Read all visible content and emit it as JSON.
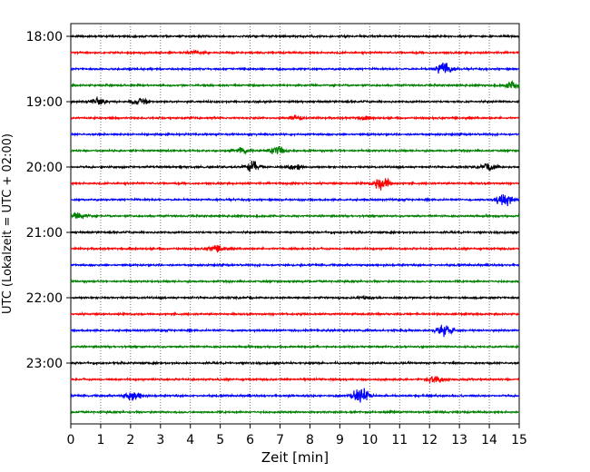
{
  "chart_data": {
    "type": "line",
    "subtype": "helicorder (seismogram drum plot)",
    "xlabel": "Zeit  [min]",
    "ylabel": "UTC (Lokalzeit = UTC + 02:00)",
    "xlim": [
      0,
      15
    ],
    "x_ticks": [
      "0",
      "1",
      "2",
      "3",
      "4",
      "5",
      "6",
      "7",
      "8",
      "9",
      "10",
      "11",
      "12",
      "13",
      "14",
      "15"
    ],
    "x_gridlines": "dotted vertical at each minute",
    "y_tick_labels": [
      "18:00",
      "19:00",
      "20:00",
      "21:00",
      "22:00",
      "23:00"
    ],
    "line_interval_minutes": 15,
    "line_colors": [
      "#000000",
      "#ff0000",
      "#0000ff",
      "#008000"
    ],
    "traces": [
      {
        "start": "18:00",
        "color": "#000000",
        "events": []
      },
      {
        "start": "18:15",
        "color": "#ff0000",
        "events": [
          {
            "t": 4.1,
            "amp": 2
          }
        ]
      },
      {
        "start": "18:30",
        "color": "#0000ff",
        "events": [
          {
            "t": 12.5,
            "amp": 9
          }
        ]
      },
      {
        "start": "18:45",
        "color": "#008000",
        "events": [
          {
            "t": 14.8,
            "amp": 4
          }
        ]
      },
      {
        "start": "19:00",
        "color": "#000000",
        "events": [
          {
            "t": 0.9,
            "amp": 4
          },
          {
            "t": 2.3,
            "amp": 4
          }
        ]
      },
      {
        "start": "19:15",
        "color": "#ff0000",
        "events": [
          {
            "t": 7.6,
            "amp": 3
          },
          {
            "t": 9.8,
            "amp": 2
          }
        ]
      },
      {
        "start": "19:30",
        "color": "#0000ff",
        "events": []
      },
      {
        "start": "19:45",
        "color": "#008000",
        "events": [
          {
            "t": 5.7,
            "amp": 4
          },
          {
            "t": 6.9,
            "amp": 6
          }
        ]
      },
      {
        "start": "20:00",
        "color": "#000000",
        "events": [
          {
            "t": 6.1,
            "amp": 7
          },
          {
            "t": 7.5,
            "amp": 3
          },
          {
            "t": 14.0,
            "amp": 4
          }
        ]
      },
      {
        "start": "20:15",
        "color": "#ff0000",
        "events": [
          {
            "t": 10.4,
            "amp": 8
          }
        ]
      },
      {
        "start": "20:30",
        "color": "#0000ff",
        "events": [
          {
            "t": 14.5,
            "amp": 9
          }
        ]
      },
      {
        "start": "20:45",
        "color": "#008000",
        "events": [
          {
            "t": 0.3,
            "amp": 4
          }
        ]
      },
      {
        "start": "21:00",
        "color": "#000000",
        "events": []
      },
      {
        "start": "21:15",
        "color": "#ff0000",
        "events": [
          {
            "t": 4.9,
            "amp": 4
          }
        ]
      },
      {
        "start": "21:30",
        "color": "#0000ff",
        "events": []
      },
      {
        "start": "21:45",
        "color": "#008000",
        "events": []
      },
      {
        "start": "22:00",
        "color": "#000000",
        "events": [
          {
            "t": 9.8,
            "amp": 2
          }
        ]
      },
      {
        "start": "22:15",
        "color": "#ff0000",
        "events": []
      },
      {
        "start": "22:30",
        "color": "#0000ff",
        "events": [
          {
            "t": 12.5,
            "amp": 7
          }
        ]
      },
      {
        "start": "22:45",
        "color": "#008000",
        "events": []
      },
      {
        "start": "23:00",
        "color": "#000000",
        "events": []
      },
      {
        "start": "23:15",
        "color": "#ff0000",
        "events": [
          {
            "t": 12.2,
            "amp": 6
          }
        ]
      },
      {
        "start": "23:30",
        "color": "#0000ff",
        "events": [
          {
            "t": 2.1,
            "amp": 7
          },
          {
            "t": 9.7,
            "amp": 12
          }
        ]
      },
      {
        "start": "23:45",
        "color": "#008000",
        "events": []
      }
    ]
  }
}
